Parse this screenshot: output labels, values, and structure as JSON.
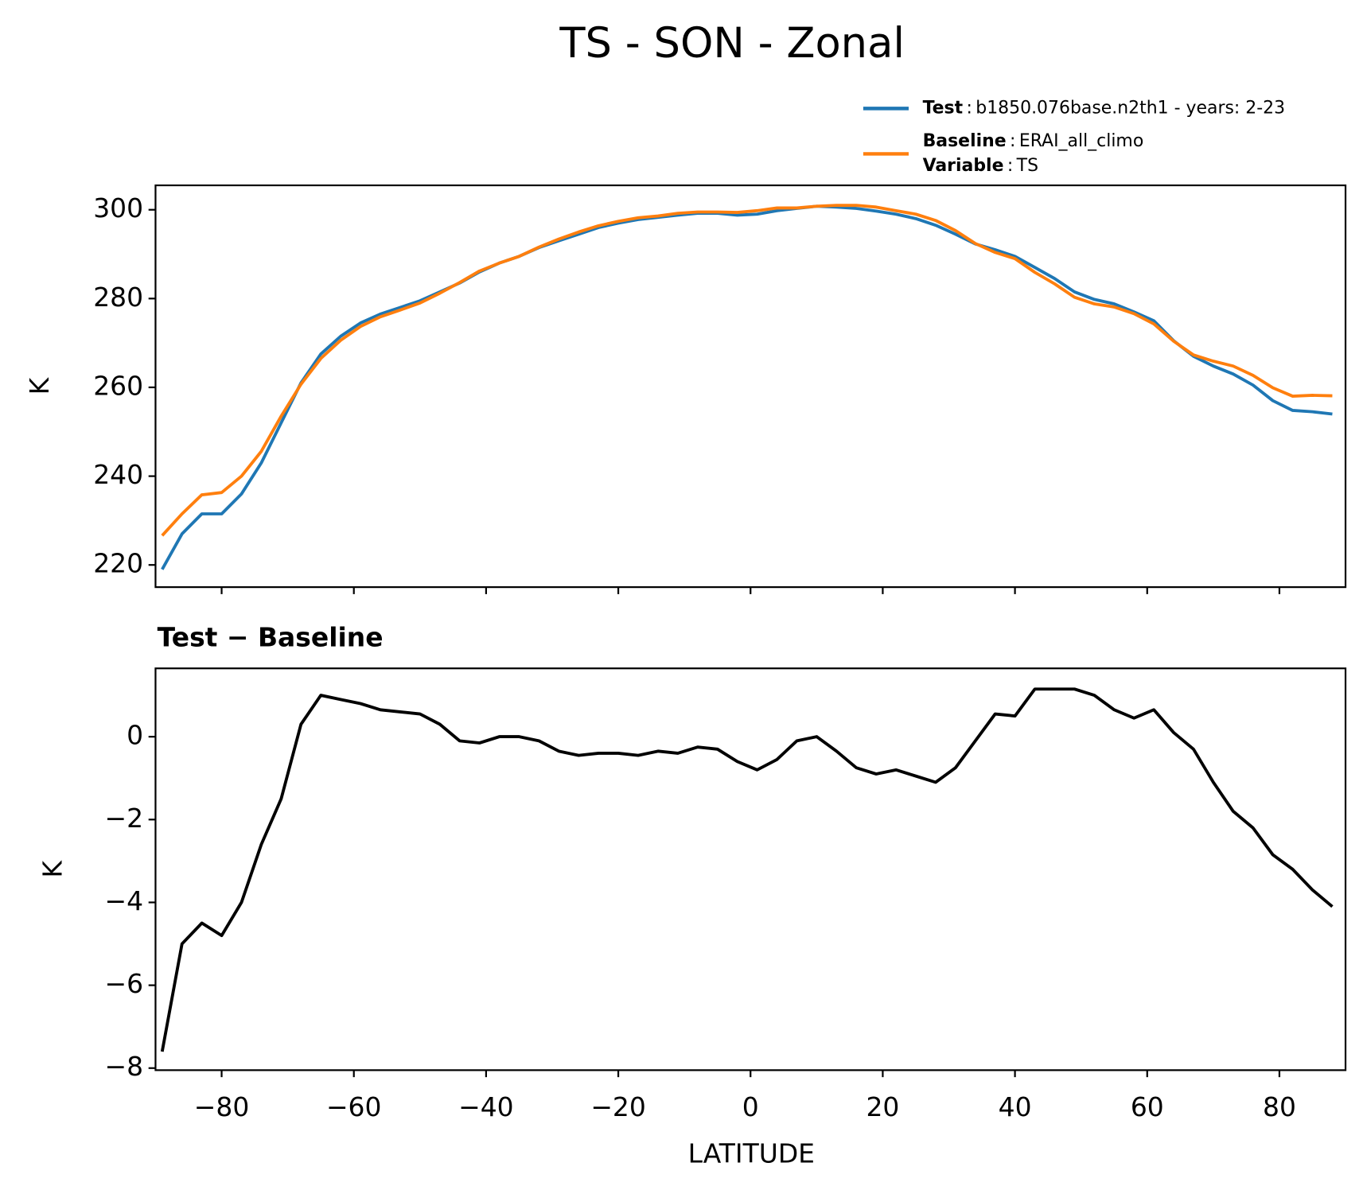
{
  "chart_data": [
    {
      "type": "line",
      "title": "TS - SON - Zonal",
      "ylabel": "K",
      "xlim": [
        -90,
        90
      ],
      "ylim": [
        215,
        305.5
      ],
      "yticks": [
        220,
        240,
        260,
        280,
        300
      ],
      "legend_separator": ":",
      "legend_variable": {
        "name": "Variable",
        "value": "TS"
      },
      "legend": "upper right",
      "x": [
        -89,
        -86,
        -83,
        -80,
        -77,
        -74,
        -71,
        -68,
        -65,
        -62,
        -59,
        -56,
        -53,
        -50,
        -47,
        -44,
        -41,
        -38,
        -35,
        -32,
        -29,
        -26,
        -23,
        -20,
        -17,
        -14,
        -11,
        -8,
        -5,
        -2,
        1,
        4,
        7,
        10,
        13,
        16,
        19,
        22,
        25,
        28,
        31,
        34,
        37,
        40,
        43,
        46,
        49,
        52,
        55,
        58,
        61,
        64,
        67,
        70,
        73,
        76,
        79,
        82,
        85,
        88
      ],
      "series": [
        {
          "name": "Test",
          "description": "b1850.076base.n2th1 - years: 2-23",
          "color": "#1f77b4",
          "values": [
            219,
            227,
            231.5,
            231.5,
            236,
            243,
            252,
            261,
            267.5,
            271.5,
            274.5,
            276.5,
            278,
            279.5,
            281.5,
            283.5,
            286,
            288,
            289.5,
            291.5,
            293,
            294.5,
            296,
            297,
            297.8,
            298.3,
            298.8,
            299.2,
            299.2,
            298.8,
            299,
            299.8,
            300.3,
            300.8,
            300.6,
            300.3,
            299.7,
            299,
            298,
            296.5,
            294.5,
            292.3,
            291,
            289.5,
            287,
            284.5,
            281.5,
            279.8,
            278.8,
            277,
            275,
            270.5,
            267,
            264.8,
            263,
            260.5,
            257,
            254.8,
            254.5,
            254
          ]
        },
        {
          "name": "Baseline",
          "description": "ERAI_all_climo",
          "color": "#ff7f0e",
          "values": [
            226.6,
            231.5,
            235.8,
            236.3,
            240,
            245.6,
            253.5,
            260.7,
            266.5,
            270.6,
            273.7,
            275.9,
            277.4,
            279,
            281.2,
            283.6,
            286.2,
            288,
            289.5,
            291.6,
            293.4,
            295,
            296.4,
            297.4,
            298.2,
            298.6,
            299.2,
            299.5,
            299.5,
            299.4,
            299.8,
            300.4,
            300.4,
            300.8,
            301,
            301,
            300.6,
            299.8,
            299,
            297.6,
            295.3,
            292.4,
            290.4,
            289,
            285.9,
            283.3,
            280.3,
            278.8,
            278.1,
            276.6,
            274.3,
            270.4,
            267.3,
            265.9,
            264.8,
            262.7,
            259.9,
            258,
            258.2,
            258.1
          ]
        }
      ]
    },
    {
      "type": "line",
      "subtitle": "Test − Baseline",
      "ylabel": "K",
      "xlabel": "LATITUDE",
      "xlim": [
        -90,
        90
      ],
      "ylim": [
        -8.05,
        1.65
      ],
      "yticks": [
        {
          "value": -8,
          "label": "−8"
        },
        {
          "value": -6,
          "label": "−6"
        },
        {
          "value": -4,
          "label": "−4"
        },
        {
          "value": -2,
          "label": "−2"
        },
        0
      ],
      "xticks": [
        {
          "value": -80,
          "label": "−80"
        },
        {
          "value": -60,
          "label": "−60"
        },
        {
          "value": -40,
          "label": "−40"
        },
        {
          "value": -20,
          "label": "−20"
        },
        0,
        20,
        40,
        60,
        80
      ],
      "color": "#000000",
      "x": [
        -89,
        -86,
        -83,
        -80,
        -77,
        -74,
        -71,
        -68,
        -65,
        -62,
        -59,
        -56,
        -53,
        -50,
        -47,
        -44,
        -41,
        -38,
        -35,
        -32,
        -29,
        -26,
        -23,
        -20,
        -17,
        -14,
        -11,
        -8,
        -5,
        -2,
        1,
        4,
        7,
        10,
        13,
        16,
        19,
        22,
        25,
        28,
        31,
        34,
        37,
        40,
        43,
        46,
        49,
        52,
        55,
        58,
        61,
        64,
        67,
        70,
        73,
        76,
        79,
        82,
        85,
        88
      ],
      "values": [
        -7.6,
        -5,
        -4.5,
        -4.8,
        -4,
        -2.6,
        -1.5,
        0.3,
        1,
        0.9,
        0.8,
        0.65,
        0.6,
        0.55,
        0.3,
        -0.1,
        -0.15,
        0,
        0,
        -0.1,
        -0.35,
        -0.45,
        -0.4,
        -0.4,
        -0.45,
        -0.35,
        -0.4,
        -0.25,
        -0.3,
        -0.6,
        -0.8,
        -0.55,
        -0.1,
        0,
        -0.35,
        -0.75,
        -0.9,
        -0.8,
        -0.95,
        -1.1,
        -0.75,
        -0.1,
        0.55,
        0.5,
        1.15,
        1.15,
        1.15,
        1,
        0.65,
        0.45,
        0.65,
        0.1,
        -0.3,
        -1.1,
        -1.8,
        -2.2,
        -2.85,
        -3.2,
        -3.7,
        -4.1
      ]
    }
  ]
}
